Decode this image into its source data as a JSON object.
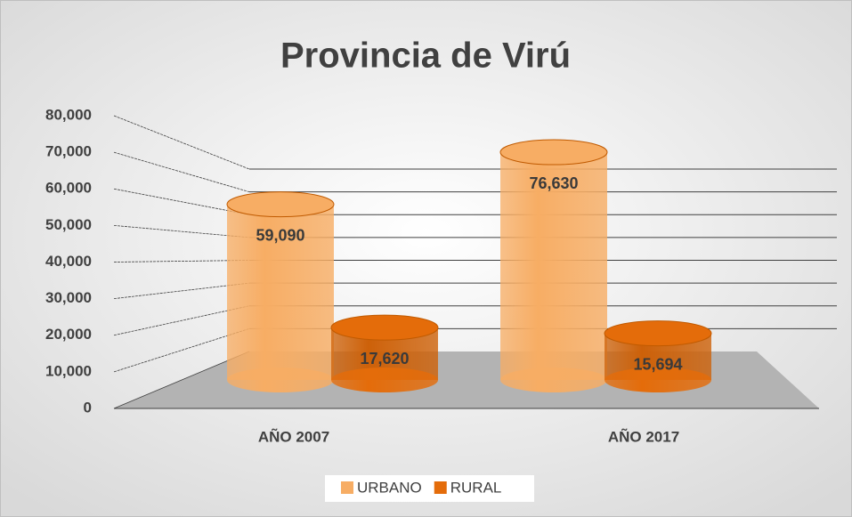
{
  "chart_data": {
    "type": "bar3d",
    "title": "Provincia de Virú",
    "categories": [
      "AÑO 2007",
      "AÑO 2017"
    ],
    "series": [
      {
        "name": "URBANO",
        "color": "#f7ad64",
        "values": [
          59090,
          76630
        ],
        "value_labels": [
          "59,090",
          "76,630"
        ]
      },
      {
        "name": "RURAL",
        "color": "#e46c0a",
        "values": [
          17620,
          15694
        ],
        "value_labels": [
          "17,620",
          "15,694"
        ]
      }
    ],
    "ylim": [
      0,
      80000
    ],
    "yticks": [
      0,
      {
        "value": 10000,
        "label": "10,000"
      },
      {
        "value": 20000,
        "label": "20,000"
      },
      {
        "value": 30000,
        "label": "30,000"
      },
      {
        "value": 40000,
        "label": "40,000"
      },
      {
        "value": 50000,
        "label": "50,000"
      },
      {
        "value": 60000,
        "label": "60,000"
      },
      {
        "value": 70000,
        "label": "70,000"
      },
      {
        "value": 80000,
        "label": "80,000"
      }
    ],
    "grid": true,
    "legend": "bottom"
  }
}
